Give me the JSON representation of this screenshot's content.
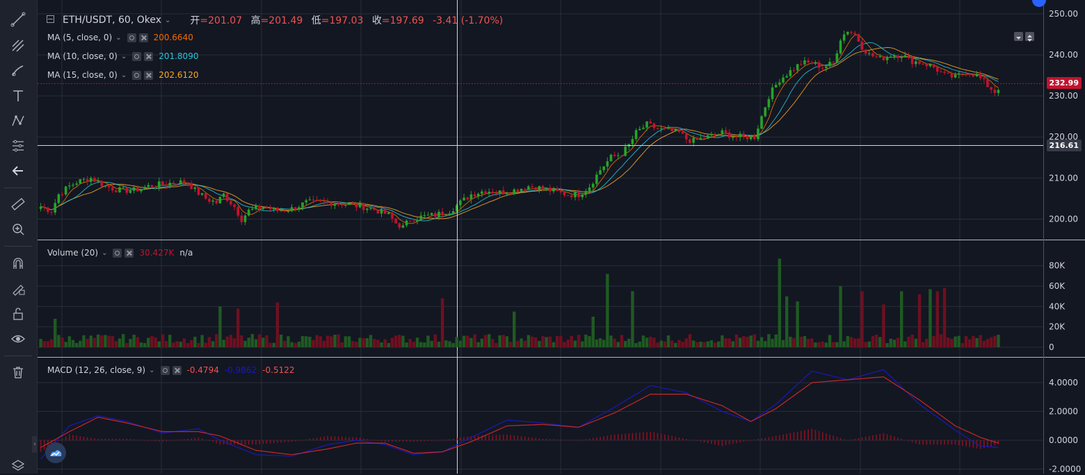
{
  "symbol": {
    "title": "ETH/USDT, 60, Okex",
    "chevron": "chevron-down-icon"
  },
  "ohlc": {
    "open_label": "开",
    "open_value": "=201.07",
    "high_label": "高",
    "high_value": "=201.49",
    "low_label": "低",
    "low_value": "=197.03",
    "close_label": "收",
    "close_value": "=197.69",
    "change": "-3.41 (-1.70%)"
  },
  "indicators": {
    "ma5": {
      "name": "MA (5, close, 0)",
      "value": "200.6640",
      "color": "#ef6c00"
    },
    "ma10": {
      "name": "MA (10, close, 0)",
      "value": "201.8090",
      "color": "#26c6da"
    },
    "ma15": {
      "name": "MA (15, close, 0)",
      "value": "202.6120",
      "color": "#f9a825"
    },
    "volume": {
      "name": "Volume (20)",
      "value": "30.427K",
      "extra": "n/a"
    },
    "macd": {
      "name": "MACD (12, 26, close, 9)",
      "v1": "-0.4794",
      "v2": "-0.9862",
      "v3": "-0.5122"
    }
  },
  "price_axis": {
    "ticks": [
      "250.00",
      "240.00",
      "230.00",
      "220.00",
      "210.00",
      "200.00"
    ],
    "current_price": "232.99",
    "crosshair_price": "216.61"
  },
  "volume_axis": {
    "ticks": [
      "80K",
      "60K",
      "40K",
      "20K",
      "0"
    ]
  },
  "macd_axis": {
    "ticks": [
      "4.0000",
      "2.0000",
      "0.0000",
      "-2.0000"
    ]
  },
  "colors": {
    "up": "#26a32a",
    "down": "#c2132f",
    "bg": "#131722",
    "grid": "#2a2e39",
    "macd_line": "#1a1ab8",
    "signal_line": "#c62828"
  },
  "toolbar_icons": [
    "line-tool-icon",
    "fib-tool-icon",
    "brush-tool-icon",
    "text-tool-icon",
    "pattern-tool-icon",
    "prediction-tool-icon",
    "back-arrow-icon",
    "ruler-icon",
    "zoom-in-icon",
    "magnet-icon",
    "lock-drawing-icon",
    "unlock-icon",
    "eye-icon",
    "trash-icon"
  ],
  "chart_data": {
    "type": "candlestick",
    "symbol": "ETH/USDT",
    "interval": "60",
    "ylim": [
      195,
      252
    ],
    "price_keypoints": [
      [
        0,
        203
      ],
      [
        3,
        202
      ],
      [
        5,
        206
      ],
      [
        8,
        208
      ],
      [
        10,
        209
      ],
      [
        14,
        210
      ],
      [
        18,
        208
      ],
      [
        22,
        207
      ],
      [
        26,
        207
      ],
      [
        30,
        208
      ],
      [
        34,
        208.5
      ],
      [
        38,
        209
      ],
      [
        41,
        209
      ],
      [
        43,
        207
      ],
      [
        46,
        205
      ],
      [
        49,
        204
      ],
      [
        51,
        206
      ],
      [
        54,
        203
      ],
      [
        56,
        200
      ],
      [
        58,
        202
      ],
      [
        62,
        203
      ],
      [
        66,
        202
      ],
      [
        70,
        202.5
      ],
      [
        74,
        204
      ],
      [
        78,
        204
      ],
      [
        82,
        204
      ],
      [
        86,
        203.5
      ],
      [
        90,
        203
      ],
      [
        94,
        202
      ],
      [
        97,
        201
      ],
      [
        99,
        199
      ],
      [
        101,
        198
      ],
      [
        103,
        200
      ],
      [
        106,
        200.5
      ],
      [
        110,
        201
      ],
      [
        114,
        202
      ],
      [
        117,
        204
      ],
      [
        120,
        206
      ],
      [
        124,
        207
      ],
      [
        128,
        206.5
      ],
      [
        132,
        207
      ],
      [
        136,
        208
      ],
      [
        140,
        207.5
      ],
      [
        144,
        206.5
      ],
      [
        147,
        206
      ],
      [
        150,
        206
      ],
      [
        153,
        208
      ],
      [
        156,
        212
      ],
      [
        159,
        215
      ],
      [
        162,
        216
      ],
      [
        164,
        218
      ],
      [
        166,
        221
      ],
      [
        169,
        223
      ],
      [
        172,
        222
      ],
      [
        175,
        221.5
      ],
      [
        178,
        221
      ],
      [
        180,
        219.5
      ],
      [
        182,
        219
      ],
      [
        186,
        220
      ],
      [
        190,
        221
      ],
      [
        194,
        220
      ],
      [
        197,
        220
      ],
      [
        199,
        220
      ],
      [
        201,
        225
      ],
      [
        203,
        230
      ],
      [
        206,
        234
      ],
      [
        209,
        236
      ],
      [
        212,
        238
      ],
      [
        215,
        238
      ],
      [
        218,
        237
      ],
      [
        221,
        238
      ],
      [
        223,
        244
      ],
      [
        225,
        246
      ],
      [
        227,
        245
      ],
      [
        229,
        242
      ],
      [
        231,
        240
      ],
      [
        234,
        239
      ],
      [
        237,
        240
      ],
      [
        240,
        240
      ],
      [
        243,
        238.5
      ],
      [
        246,
        238
      ],
      [
        249,
        237
      ],
      [
        252,
        235
      ],
      [
        255,
        234.5
      ],
      [
        258,
        236
      ],
      [
        261,
        235
      ],
      [
        264,
        232.5
      ],
      [
        266,
        231
      ],
      [
        267,
        232
      ]
    ],
    "candle_count": 268,
    "volume_ylim": [
      0,
      90000
    ],
    "volume_spikes": [
      [
        4,
        28000
      ],
      [
        50,
        40000
      ],
      [
        55,
        38000
      ],
      [
        66,
        44000
      ],
      [
        112,
        48000
      ],
      [
        132,
        35000
      ],
      [
        154,
        30000
      ],
      [
        158,
        72000
      ],
      [
        165,
        55000
      ],
      [
        206,
        87000
      ],
      [
        208,
        50000
      ],
      [
        211,
        45000
      ],
      [
        223,
        60000
      ],
      [
        229,
        55000
      ],
      [
        235,
        42000
      ],
      [
        240,
        55000
      ],
      [
        245,
        52000
      ],
      [
        248,
        57000
      ],
      [
        250,
        55000
      ],
      [
        252,
        58000
      ]
    ],
    "macd_ylim": [
      -2.2,
      5.2
    ],
    "macd_keypoints": [
      [
        0,
        -1.3
      ],
      [
        8,
        1.0
      ],
      [
        16,
        1.7
      ],
      [
        24,
        1.3
      ],
      [
        34,
        0.5
      ],
      [
        44,
        0.8
      ],
      [
        50,
        0.0
      ],
      [
        60,
        -1.0
      ],
      [
        70,
        -1.1
      ],
      [
        80,
        -0.3
      ],
      [
        88,
        0.0
      ],
      [
        96,
        -0.3
      ],
      [
        104,
        -1.0
      ],
      [
        112,
        -0.8
      ],
      [
        120,
        0.2
      ],
      [
        130,
        1.4
      ],
      [
        140,
        1.2
      ],
      [
        150,
        0.9
      ],
      [
        160,
        2.3
      ],
      [
        170,
        3.8
      ],
      [
        180,
        3.3
      ],
      [
        190,
        2.0
      ],
      [
        198,
        1.3
      ],
      [
        205,
        2.5
      ],
      [
        215,
        4.8
      ],
      [
        225,
        4.2
      ],
      [
        235,
        4.9
      ],
      [
        245,
        2.5
      ],
      [
        255,
        0.7
      ],
      [
        262,
        -0.4
      ],
      [
        267,
        -0.5
      ]
    ],
    "signal_keypoints": [
      [
        0,
        -0.5
      ],
      [
        8,
        0.6
      ],
      [
        16,
        1.6
      ],
      [
        24,
        1.2
      ],
      [
        34,
        0.6
      ],
      [
        44,
        0.6
      ],
      [
        50,
        0.3
      ],
      [
        60,
        -0.7
      ],
      [
        70,
        -1.0
      ],
      [
        80,
        -0.6
      ],
      [
        88,
        -0.2
      ],
      [
        96,
        -0.2
      ],
      [
        104,
        -0.9
      ],
      [
        112,
        -0.8
      ],
      [
        120,
        -0.1
      ],
      [
        130,
        1.0
      ],
      [
        140,
        1.1
      ],
      [
        150,
        0.9
      ],
      [
        160,
        1.9
      ],
      [
        170,
        3.2
      ],
      [
        180,
        3.2
      ],
      [
        190,
        2.4
      ],
      [
        198,
        1.3
      ],
      [
        205,
        2.2
      ],
      [
        215,
        4.0
      ],
      [
        225,
        4.2
      ],
      [
        235,
        4.4
      ],
      [
        245,
        2.8
      ],
      [
        255,
        1.0
      ],
      [
        262,
        0.2
      ],
      [
        267,
        -0.2
      ]
    ]
  }
}
